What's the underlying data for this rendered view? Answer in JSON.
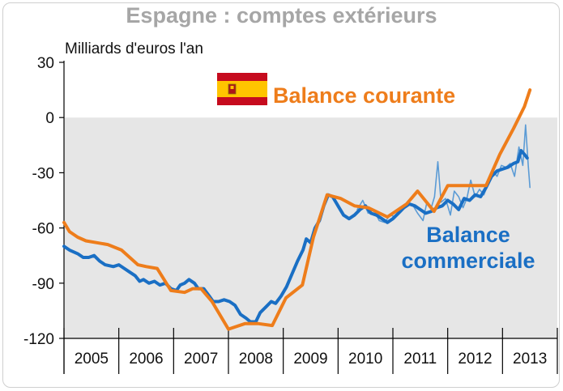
{
  "chart_data": {
    "type": "line",
    "title": "Espagne : comptes extérieurs",
    "ylabel": "Milliards d'euros l'an",
    "ylim": [
      -120,
      30
    ],
    "yticks": [
      30,
      0,
      -30,
      -60,
      -90,
      -120
    ],
    "year_labels": [
      "2005",
      "2006",
      "2007",
      "2008",
      "2009",
      "2010",
      "2011",
      "2012",
      "2013"
    ],
    "x_range": [
      2004.5,
      2013.5
    ],
    "grid": false,
    "shaded_region_ylim": [
      -120,
      0
    ],
    "flag_icon": "spain-flag-icon",
    "series": [
      {
        "name": "Balance courante",
        "color": "#ee7d1b",
        "points": [
          [
            2004.5,
            -57
          ],
          [
            2004.6,
            -62
          ],
          [
            2004.75,
            -65
          ],
          [
            2004.9,
            -67
          ],
          [
            2005.1,
            -68
          ],
          [
            2005.3,
            -69
          ],
          [
            2005.55,
            -72
          ],
          [
            2005.85,
            -80
          ],
          [
            2006.0,
            -81
          ],
          [
            2006.2,
            -82
          ],
          [
            2006.45,
            -94
          ],
          [
            2006.7,
            -95
          ],
          [
            2006.85,
            -93
          ],
          [
            2007.0,
            -93
          ],
          [
            2007.2,
            -100
          ],
          [
            2007.5,
            -115
          ],
          [
            2007.8,
            -112
          ],
          [
            2008.05,
            -112
          ],
          [
            2008.3,
            -113
          ],
          [
            2008.55,
            -98
          ],
          [
            2008.85,
            -91
          ],
          [
            2009.05,
            -65
          ],
          [
            2009.3,
            -42
          ],
          [
            2009.55,
            -44
          ],
          [
            2009.8,
            -48
          ],
          [
            2010.05,
            -49
          ],
          [
            2010.4,
            -54
          ],
          [
            2010.75,
            -47
          ],
          [
            2010.95,
            -40
          ],
          [
            2011.25,
            -51
          ],
          [
            2011.5,
            -37
          ],
          [
            2011.75,
            -37
          ],
          [
            2012.0,
            -37
          ],
          [
            2012.2,
            -37
          ],
          [
            2012.45,
            -20
          ],
          [
            2012.7,
            -6
          ],
          [
            2012.9,
            6
          ],
          [
            2013.0,
            15
          ]
        ]
      },
      {
        "name": "Balance commerciale",
        "color": "#1a6fc4",
        "points": [
          [
            2004.5,
            -70
          ],
          [
            2004.6,
            -72
          ],
          [
            2004.75,
            -74
          ],
          [
            2004.85,
            -76
          ],
          [
            2004.95,
            -76
          ],
          [
            2005.05,
            -75
          ],
          [
            2005.15,
            -78
          ],
          [
            2005.25,
            -80
          ],
          [
            2005.4,
            -81
          ],
          [
            2005.5,
            -80
          ],
          [
            2005.6,
            -82
          ],
          [
            2005.7,
            -84
          ],
          [
            2005.8,
            -86
          ],
          [
            2005.88,
            -89
          ],
          [
            2005.95,
            -88
          ],
          [
            2006.05,
            -90
          ],
          [
            2006.15,
            -89
          ],
          [
            2006.25,
            -91
          ],
          [
            2006.35,
            -90
          ],
          [
            2006.45,
            -93
          ],
          [
            2006.55,
            -94
          ],
          [
            2006.62,
            -91
          ],
          [
            2006.7,
            -90
          ],
          [
            2006.78,
            -88
          ],
          [
            2006.88,
            -90
          ],
          [
            2006.95,
            -93
          ],
          [
            2007.05,
            -93
          ],
          [
            2007.15,
            -97
          ],
          [
            2007.22,
            -100
          ],
          [
            2007.32,
            -100
          ],
          [
            2007.42,
            -99
          ],
          [
            2007.52,
            -100
          ],
          [
            2007.62,
            -102
          ],
          [
            2007.72,
            -107
          ],
          [
            2007.82,
            -109
          ],
          [
            2007.9,
            -111
          ],
          [
            2008.0,
            -111
          ],
          [
            2008.08,
            -106
          ],
          [
            2008.18,
            -103
          ],
          [
            2008.28,
            -100
          ],
          [
            2008.36,
            -101
          ],
          [
            2008.46,
            -97
          ],
          [
            2008.56,
            -92
          ],
          [
            2008.66,
            -85
          ],
          [
            2008.76,
            -78
          ],
          [
            2008.86,
            -72
          ],
          [
            2008.92,
            -66
          ],
          [
            2009.0,
            -68
          ],
          [
            2009.08,
            -60
          ],
          [
            2009.16,
            -56
          ],
          [
            2009.24,
            -48
          ],
          [
            2009.32,
            -42
          ],
          [
            2009.4,
            -43
          ],
          [
            2009.5,
            -48
          ],
          [
            2009.6,
            -53
          ],
          [
            2009.7,
            -55
          ],
          [
            2009.8,
            -53
          ],
          [
            2009.9,
            -50
          ],
          [
            2010.0,
            -48
          ],
          [
            2010.1,
            -52
          ],
          [
            2010.2,
            -53
          ],
          [
            2010.3,
            -55
          ],
          [
            2010.4,
            -57
          ],
          [
            2010.5,
            -55
          ],
          [
            2010.6,
            -52
          ],
          [
            2010.7,
            -49
          ],
          [
            2010.8,
            -47
          ],
          [
            2010.9,
            -48
          ],
          [
            2011.0,
            -50
          ],
          [
            2011.1,
            -52
          ],
          [
            2011.2,
            -51
          ],
          [
            2011.3,
            -49
          ],
          [
            2011.4,
            -48
          ],
          [
            2011.5,
            -45
          ],
          [
            2011.6,
            -47
          ],
          [
            2011.7,
            -50
          ],
          [
            2011.8,
            -44
          ],
          [
            2011.9,
            -45
          ],
          [
            2012.0,
            -42
          ],
          [
            2012.1,
            -43
          ],
          [
            2012.2,
            -38
          ],
          [
            2012.3,
            -32
          ],
          [
            2012.4,
            -29
          ],
          [
            2012.5,
            -28
          ],
          [
            2012.6,
            -27
          ],
          [
            2012.7,
            -25
          ],
          [
            2012.78,
            -24
          ],
          [
            2012.84,
            -18
          ],
          [
            2012.9,
            -20
          ],
          [
            2012.95,
            -22
          ]
        ]
      },
      {
        "name": "",
        "color": "#5b9bd5",
        "points": [
          [
            2009.85,
            -50
          ],
          [
            2009.95,
            -45
          ],
          [
            2010.05,
            -52
          ],
          [
            2010.15,
            -50
          ],
          [
            2010.25,
            -56
          ],
          [
            2010.35,
            -57
          ],
          [
            2010.45,
            -53
          ],
          [
            2010.55,
            -54
          ],
          [
            2010.65,
            -49
          ],
          [
            2010.75,
            -48
          ],
          [
            2010.85,
            -47
          ],
          [
            2010.95,
            -52
          ],
          [
            2011.05,
            -56
          ],
          [
            2011.12,
            -46
          ],
          [
            2011.2,
            -49
          ],
          [
            2011.26,
            -43
          ],
          [
            2011.32,
            -24
          ],
          [
            2011.38,
            -46
          ],
          [
            2011.46,
            -44
          ],
          [
            2011.55,
            -53
          ],
          [
            2011.62,
            -40
          ],
          [
            2011.7,
            -43
          ],
          [
            2011.78,
            -49
          ],
          [
            2011.85,
            -44
          ],
          [
            2011.92,
            -34
          ],
          [
            2012.0,
            -43
          ],
          [
            2012.08,
            -39
          ],
          [
            2012.16,
            -42
          ],
          [
            2012.24,
            -36
          ],
          [
            2012.32,
            -29
          ],
          [
            2012.4,
            -32
          ],
          [
            2012.48,
            -26
          ],
          [
            2012.56,
            -27
          ],
          [
            2012.64,
            -25
          ],
          [
            2012.72,
            -32
          ],
          [
            2012.8,
            -16
          ],
          [
            2012.87,
            -26
          ],
          [
            2012.92,
            -4
          ],
          [
            2012.97,
            -26
          ],
          [
            2013.0,
            -38
          ]
        ]
      }
    ]
  }
}
